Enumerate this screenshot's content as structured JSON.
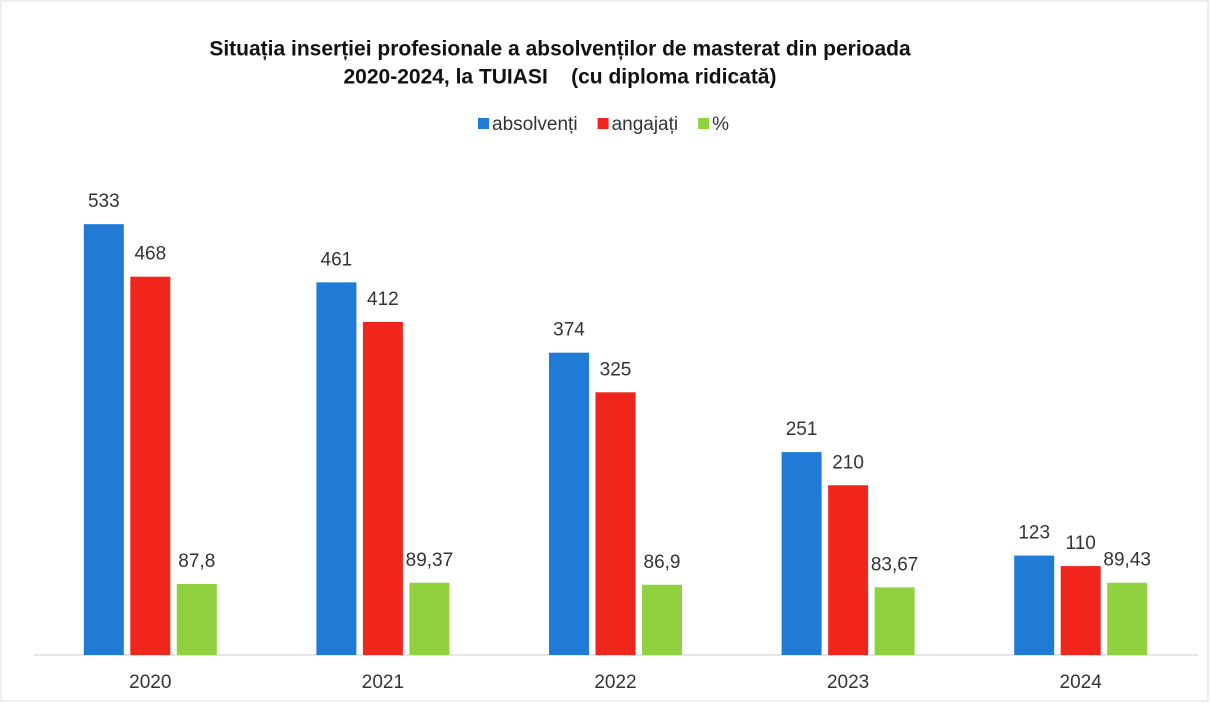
{
  "chart_data": {
    "type": "bar",
    "title": [
      "Situația inserției profesionale a absolvenților de masterat din perioada",
      "2020-2024, la TUIASI    (cu diploma ridicată)"
    ],
    "categories": [
      "2020",
      "2021",
      "2022",
      "2023",
      "2024"
    ],
    "series": [
      {
        "name": "absolvenți",
        "color": "#1f7bd6",
        "values": [
          533,
          461,
          374,
          251,
          123
        ]
      },
      {
        "name": "angajați",
        "color": "#f0261c",
        "values": [
          468,
          412,
          325,
          210,
          110
        ]
      },
      {
        "name": "%",
        "color": "#8fd13f",
        "values": [
          87.8,
          89.37,
          86.9,
          83.67,
          89.43
        ],
        "value_labels": [
          "87,8",
          "89,37",
          "86,9",
          "83,67",
          "89,43"
        ]
      }
    ],
    "ylim": [
      0,
      600
    ],
    "legend": "top"
  }
}
